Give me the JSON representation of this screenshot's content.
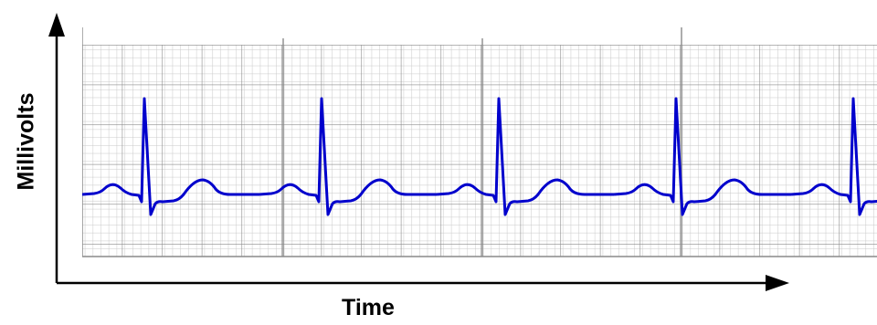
{
  "axes": {
    "y_label": "Millivolts",
    "x_label": "Time"
  }
}
